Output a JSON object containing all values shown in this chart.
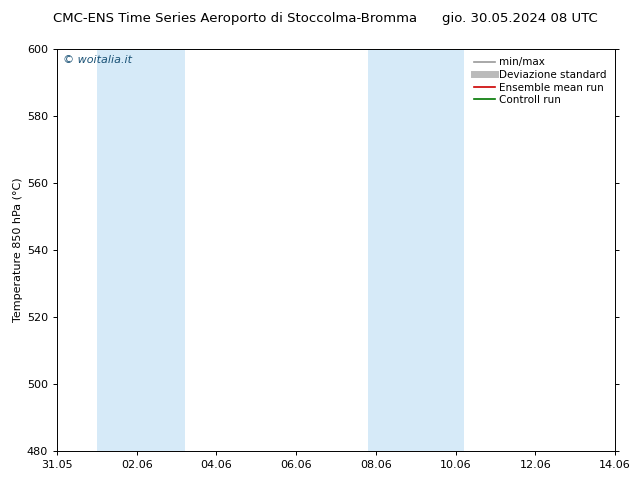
{
  "title_left": "CMC-ENS Time Series Aeroporto di Stoccolma-Bromma",
  "title_right": "gio. 30.05.2024 08 UTC",
  "ylabel": "Temperature 850 hPa (°C)",
  "ylim": [
    480,
    600
  ],
  "yticks": [
    480,
    500,
    520,
    540,
    560,
    580,
    600
  ],
  "xlim": [
    0,
    14
  ],
  "xtick_labels": [
    "31.05",
    "02.06",
    "04.06",
    "06.06",
    "08.06",
    "10.06",
    "12.06",
    "14.06"
  ],
  "xtick_positions": [
    0,
    2,
    4,
    6,
    8,
    10,
    12,
    14
  ],
  "blue_bands": [
    {
      "x_start": 1.0,
      "x_end": 3.2
    },
    {
      "x_start": 7.8,
      "x_end": 10.2
    }
  ],
  "band_color": "#d6eaf8",
  "watermark": "© woitalia.it",
  "watermark_color": "#1a5276",
  "legend_entries": [
    {
      "label": "min/max",
      "color": "#999999",
      "lw": 1.2
    },
    {
      "label": "Deviazione standard",
      "color": "#bbbbbb",
      "lw": 5
    },
    {
      "label": "Ensemble mean run",
      "color": "#cc0000",
      "lw": 1.2
    },
    {
      "label": "Controll run",
      "color": "#007700",
      "lw": 1.2
    }
  ],
  "bg_color": "#ffffff",
  "title_fontsize": 9.5,
  "tick_fontsize": 8,
  "ylabel_fontsize": 8,
  "legend_fontsize": 7.5
}
